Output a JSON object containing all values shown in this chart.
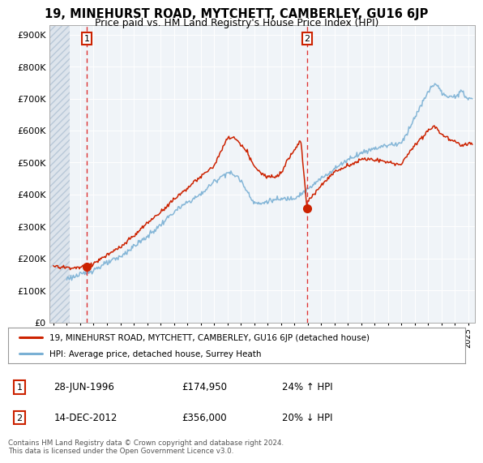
{
  "title": "19, MINEHURST ROAD, MYTCHETT, CAMBERLEY, GU16 6JP",
  "subtitle": "Price paid vs. HM Land Registry's House Price Index (HPI)",
  "ylabel_ticks": [
    "£0",
    "£100K",
    "£200K",
    "£300K",
    "£400K",
    "£500K",
    "£600K",
    "£700K",
    "£800K",
    "£900K"
  ],
  "ytick_values": [
    0,
    100000,
    200000,
    300000,
    400000,
    500000,
    600000,
    700000,
    800000,
    900000
  ],
  "ylim": [
    0,
    930000
  ],
  "xlim_start": 1993.7,
  "xlim_end": 2025.5,
  "point1_x": 1996.49,
  "point1_y": 174950,
  "point1_label": "1",
  "point2_x": 2012.96,
  "point2_y": 356000,
  "point2_label": "2",
  "red_line_color": "#cc2200",
  "blue_line_color": "#7ab0d4",
  "dashed_line_color": "#dd3333",
  "marker_color": "#cc2200",
  "legend_line1": "19, MINEHURST ROAD, MYTCHETT, CAMBERLEY, GU16 6JP (detached house)",
  "legend_line2": "HPI: Average price, detached house, Surrey Heath",
  "annotation1_date": "28-JUN-1996",
  "annotation1_price": "£174,950",
  "annotation1_hpi": "24% ↑ HPI",
  "annotation2_date": "14-DEC-2012",
  "annotation2_price": "£356,000",
  "annotation2_hpi": "20% ↓ HPI",
  "footer": "Contains HM Land Registry data © Crown copyright and database right 2024.\nThis data is licensed under the Open Government Licence v3.0.",
  "background_color": "#e8eef5",
  "hatch_end": 1995.2,
  "plot_bg_color": "#f0f4f8"
}
